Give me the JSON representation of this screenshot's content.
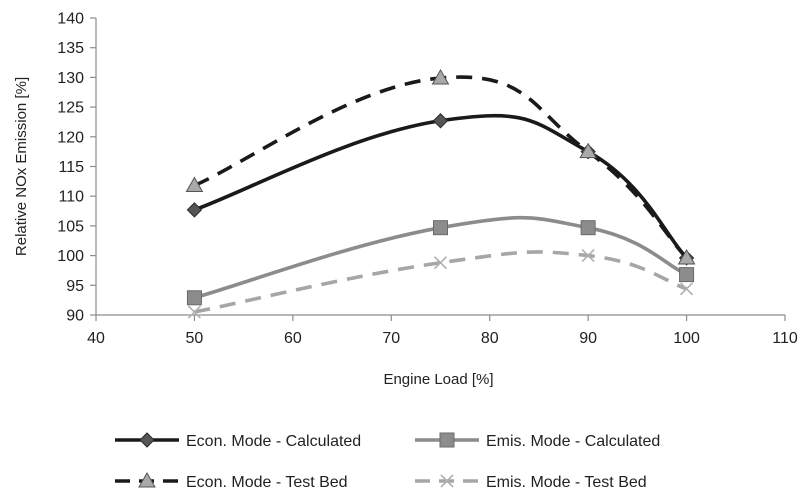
{
  "chart_data": {
    "type": "line",
    "title": "",
    "xlabel": "Engine Load [%]",
    "ylabel": "Relative NOx Emission [%]",
    "xlim": [
      40,
      110
    ],
    "ylim": [
      90,
      140
    ],
    "xticks": [
      40,
      50,
      60,
      70,
      80,
      90,
      100,
      110
    ],
    "yticks": [
      90,
      95,
      100,
      105,
      110,
      115,
      120,
      125,
      130,
      135,
      140
    ],
    "grid": "none",
    "legend_position": "bottom",
    "series": [
      {
        "name": "Econ. Mode - Calculated",
        "x": [
          50,
          75,
          90,
          100
        ],
        "y": [
          107.7,
          122.7,
          117.5,
          99.6
        ],
        "color": "#1a1a1a",
        "line_style": "solid",
        "marker": "diamond"
      },
      {
        "name": "Emis. Mode - Calculated",
        "x": [
          50,
          75,
          90,
          100
        ],
        "y": [
          92.9,
          104.7,
          104.7,
          96.8
        ],
        "color": "#8c8c8c",
        "line_style": "solid",
        "marker": "square"
      },
      {
        "name": "Econ. Mode - Test Bed",
        "x": [
          50,
          75,
          90,
          100
        ],
        "y": [
          111.8,
          129.9,
          117.5,
          99.6
        ],
        "color": "#1a1a1a",
        "line_style": "dashed",
        "marker": "triangle"
      },
      {
        "name": "Emis. Mode - Test Bed",
        "x": [
          50,
          75,
          90,
          100
        ],
        "y": [
          90.5,
          98.8,
          100.0,
          94.4
        ],
        "color": "#a6a6a6",
        "line_style": "dashed",
        "marker": "x"
      }
    ]
  }
}
